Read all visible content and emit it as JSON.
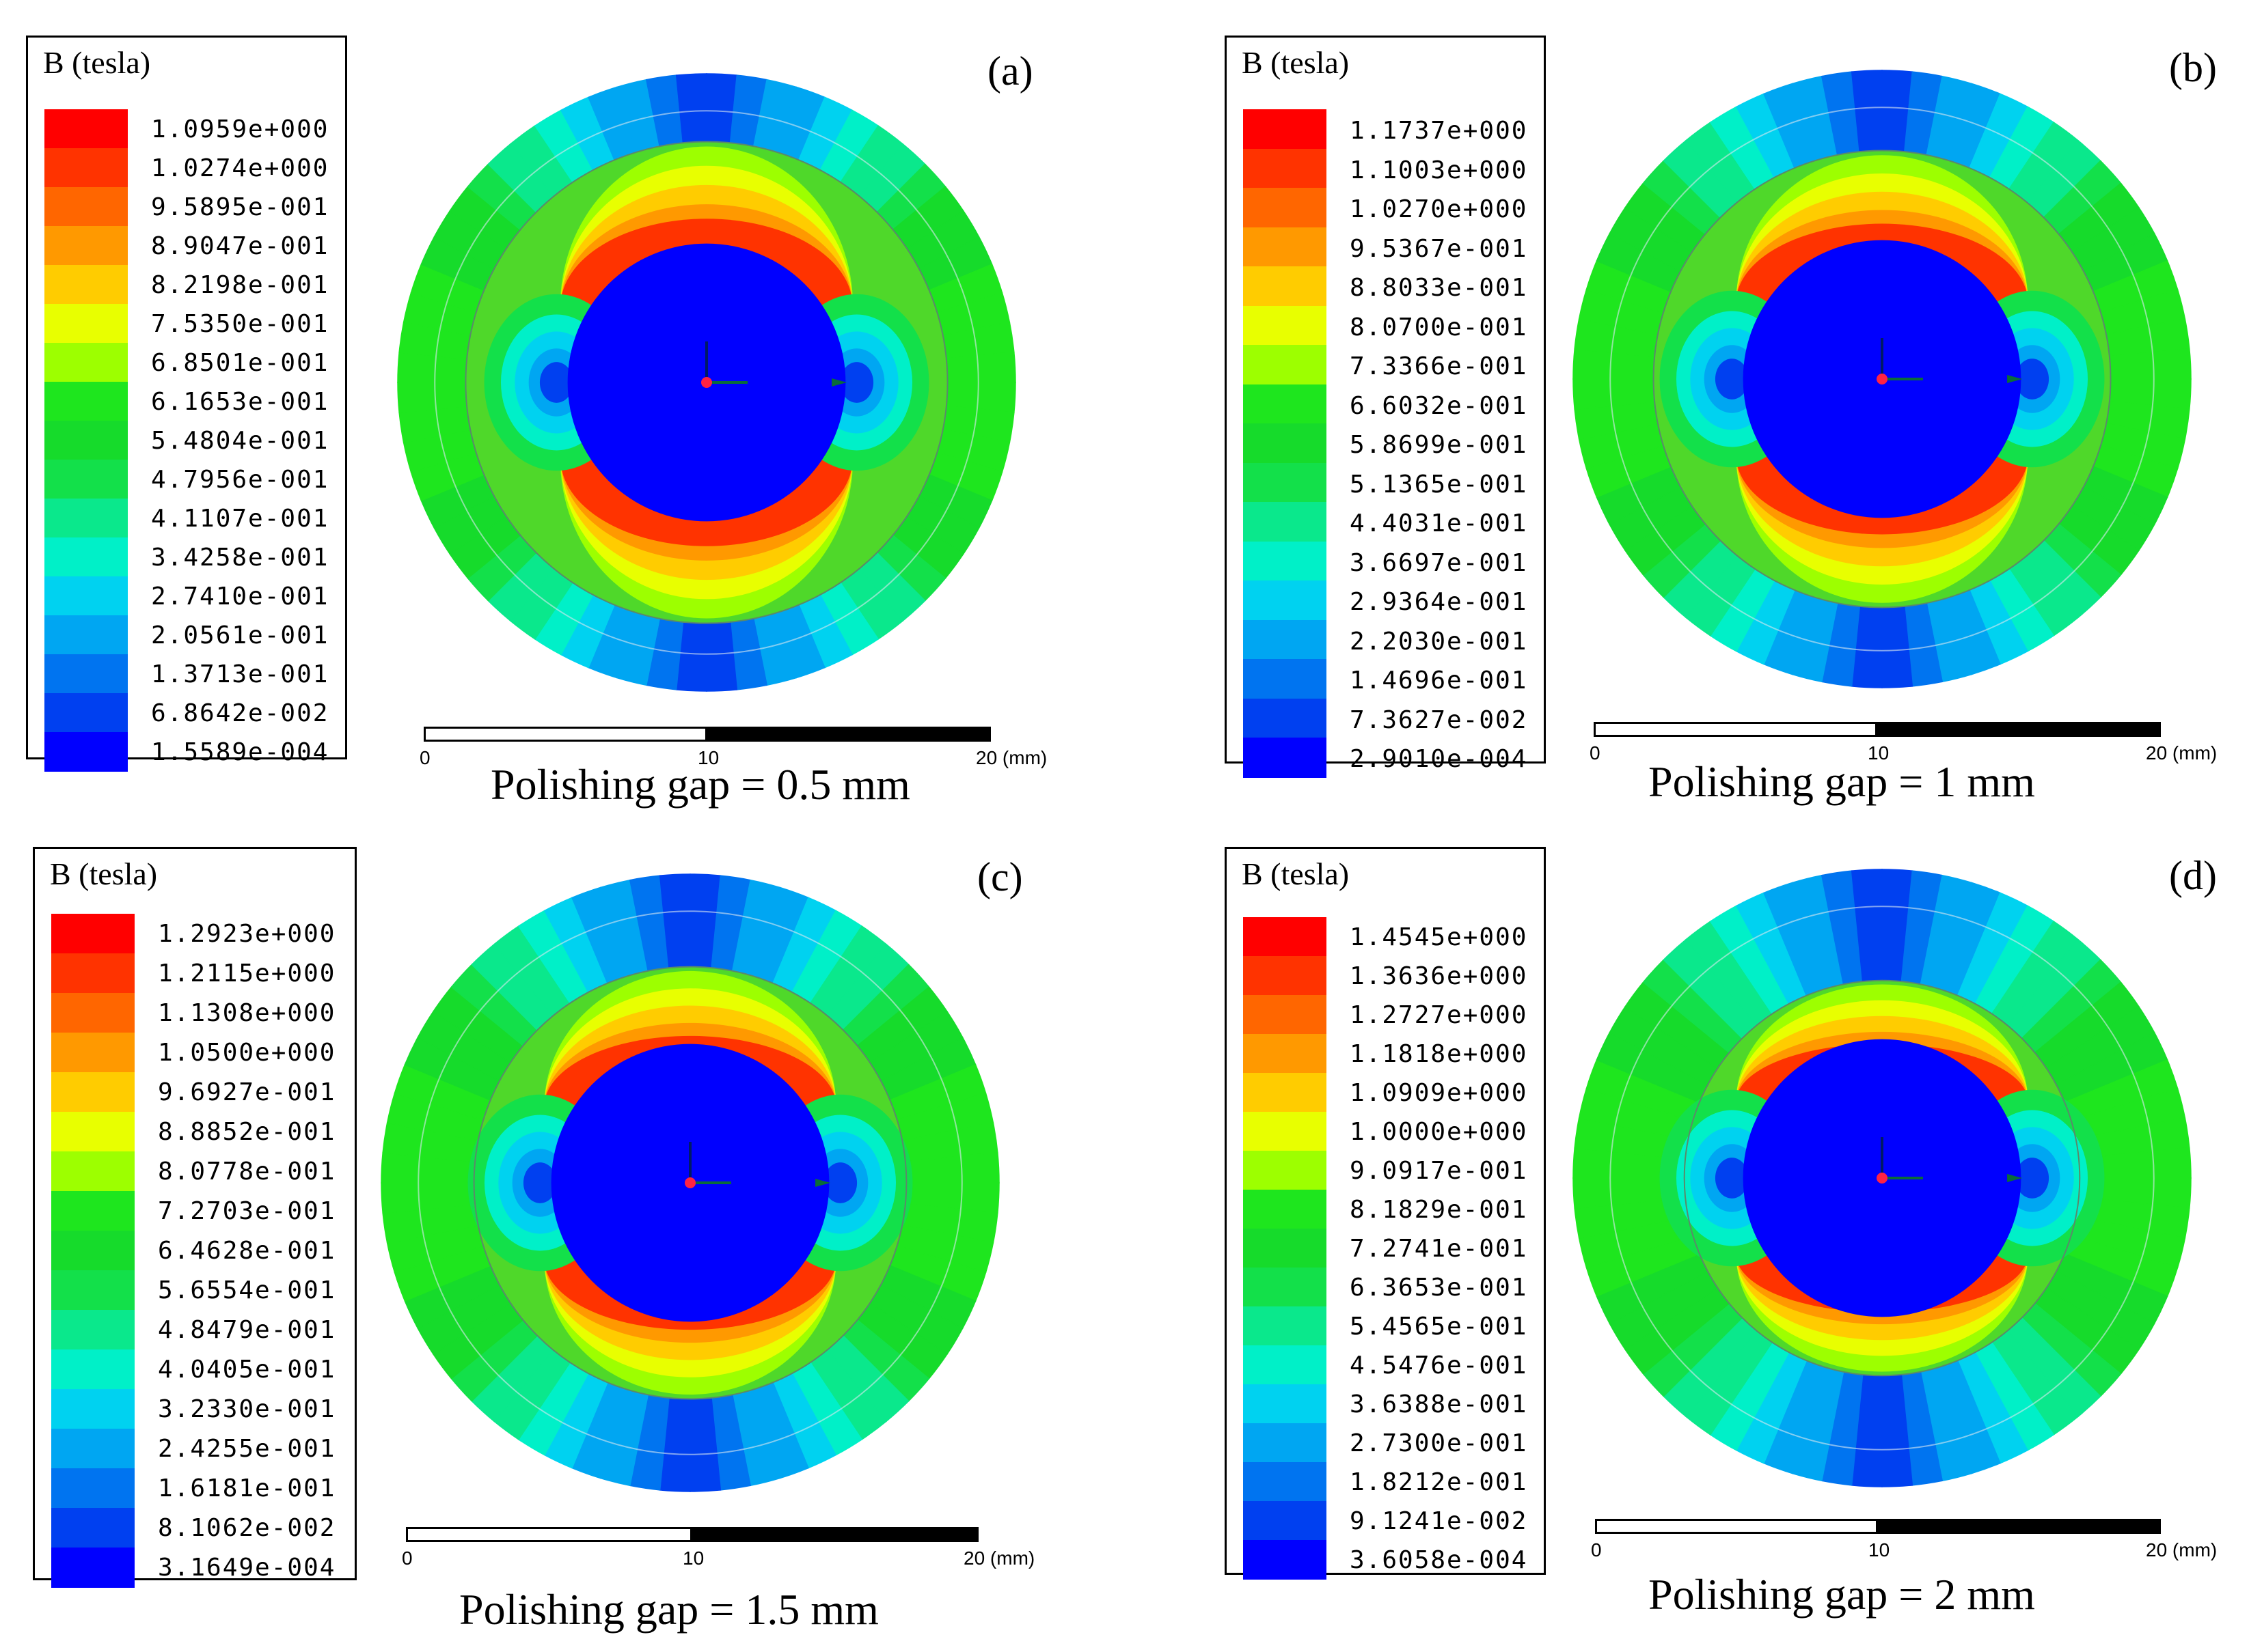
{
  "colors": {
    "scale": [
      "#ff0000",
      "#ff3300",
      "#ff6600",
      "#ff9900",
      "#ffcc00",
      "#e8ff00",
      "#9dff00",
      "#1ee61e",
      "#16db2b",
      "#13e04a",
      "#0ae88c",
      "#00f0c8",
      "#00d2f0",
      "#00a6f2",
      "#0074f0",
      "#0040f0",
      "#0000ff"
    ],
    "background": "#ffffff"
  },
  "panels": [
    {
      "label": "(a)",
      "legend_title": "B (tesla)",
      "ticks": [
        "1.0959e+000",
        "1.0274e+000",
        "9.5895e-001",
        "8.9047e-001",
        "8.2198e-001",
        "7.5350e-001",
        "6.8501e-001",
        "6.1653e-001",
        "5.4804e-001",
        "4.7956e-001",
        "4.1107e-001",
        "3.4258e-001",
        "2.7410e-001",
        "2.0561e-001",
        "1.3713e-001",
        "6.8642e-002",
        "1.5589e-004"
      ],
      "scale_labels": [
        "0",
        "10",
        "20 (mm)"
      ],
      "caption": "Polishing gap = 0.5 mm"
    },
    {
      "label": "(b)",
      "legend_title": "B (tesla)",
      "ticks": [
        "1.1737e+000",
        "1.1003e+000",
        "1.0270e+000",
        "9.5367e-001",
        "8.8033e-001",
        "8.0700e-001",
        "7.3366e-001",
        "6.6032e-001",
        "5.8699e-001",
        "5.1365e-001",
        "4.4031e-001",
        "3.6697e-001",
        "2.9364e-001",
        "2.2030e-001",
        "1.4696e-001",
        "7.3627e-002",
        "2.9010e-004"
      ],
      "scale_labels": [
        "0",
        "10",
        "20 (mm)"
      ],
      "caption": "Polishing gap = 1 mm"
    },
    {
      "label": "(c)",
      "legend_title": "B (tesla)",
      "ticks": [
        "1.2923e+000",
        "1.2115e+000",
        "1.1308e+000",
        "1.0500e+000",
        "9.6927e-001",
        "8.8852e-001",
        "8.0778e-001",
        "7.2703e-001",
        "6.4628e-001",
        "5.6554e-001",
        "4.8479e-001",
        "4.0405e-001",
        "3.2330e-001",
        "2.4255e-001",
        "1.6181e-001",
        "8.1062e-002",
        "3.1649e-004"
      ],
      "scale_labels": [
        "0",
        "10",
        "20 (mm)"
      ],
      "caption": "Polishing gap = 1.5 mm"
    },
    {
      "label": "(d)",
      "legend_title": "B (tesla)",
      "ticks": [
        "1.4545e+000",
        "1.3636e+000",
        "1.2727e+000",
        "1.1818e+000",
        "1.0909e+000",
        "1.0000e+000",
        "9.0917e-001",
        "8.1829e-001",
        "7.2741e-001",
        "6.3653e-001",
        "5.4565e-001",
        "4.5476e-001",
        "3.6388e-001",
        "2.7300e-001",
        "1.8212e-001",
        "9.1241e-002",
        "3.6058e-004"
      ],
      "scale_labels": [
        "0",
        "10",
        "20 (mm)"
      ],
      "caption": "Polishing gap = 2 mm"
    }
  ]
}
